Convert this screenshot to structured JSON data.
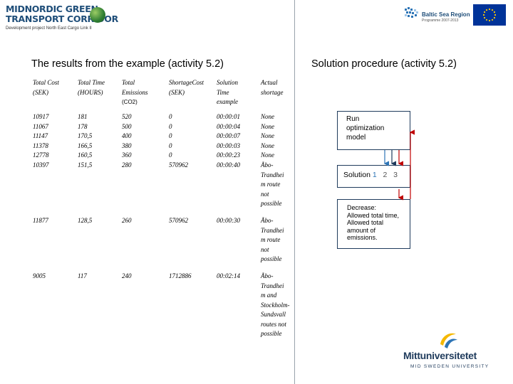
{
  "header": {
    "logo_line1": "MIDNORDIC GREEN",
    "logo_line2": "TRANSPORT CORRIDOR",
    "logo_sub": "Development project North East Cargo Link II",
    "baltic_title": "Baltic Sea Region",
    "baltic_sub": "Programme 2007-2013"
  },
  "titles": {
    "left": "The results from the example (activity 5.2)",
    "right": "Solution procedure (activity 5.2)"
  },
  "table": {
    "headers": [
      {
        "a": "Total Cost",
        "b": "(SEK)"
      },
      {
        "a": "Total Time",
        "b": "(HOURS)"
      },
      {
        "a": "Total",
        "b": "Emissions",
        "c": "(CO2)"
      },
      {
        "a": "ShortageCost",
        "b": "(SEK)"
      },
      {
        "a": "Solution",
        "b": "Time",
        "c": "example"
      },
      {
        "a": "Actual",
        "b": "shortage"
      }
    ],
    "block1": [
      [
        "10917",
        "181",
        "520",
        "0",
        "00:00:01",
        "None"
      ],
      [
        "11067",
        "178",
        "500",
        "0",
        "00:00:04",
        "None"
      ],
      [
        "11147",
        "170,5",
        "400",
        "0",
        "00:00:07",
        "None"
      ],
      [
        "11378",
        "166,5",
        "380",
        "0",
        "00:00:03",
        "None"
      ],
      [
        "12778",
        "160,5",
        "360",
        "0",
        "00:00:23",
        "None"
      ],
      [
        "10397",
        "151,5",
        "280",
        "570962",
        "00:00:40",
        "Åbo-"
      ]
    ],
    "block1_cont": [
      "Trandhei",
      "m route",
      "not",
      "possible"
    ],
    "row2": [
      "11877",
      "128,5",
      "260",
      "570962",
      "00:00:30",
      "Åbo-"
    ],
    "row2_cont": [
      "Trandhei",
      "m route",
      "not",
      "possible"
    ],
    "row3": [
      "9005",
      "117",
      "240",
      "1712886",
      "00:02:14",
      "Åbo-"
    ],
    "row3_cont": [
      "Trandhei",
      "m and",
      "Stockholm-",
      "Sundsvall",
      "routes not",
      "possible"
    ]
  },
  "diagram": {
    "run": [
      "Run",
      "optimization",
      "model"
    ],
    "solution_label": "Solution",
    "solution_nums": [
      "1",
      "2",
      "3"
    ],
    "decrease": [
      "Decrease:",
      "Allowed total time,",
      "Allowed total",
      "amount of",
      "emissions."
    ]
  },
  "footer": {
    "university": "Mittuniversitetet",
    "university_en": "MID SWEDEN UNIVERSITY"
  },
  "colors": {
    "navy": "#1f3b5c",
    "blue": "#2e75b6",
    "red": "#c00000",
    "eu_blue": "#003399",
    "eu_yellow": "#ffcc00"
  }
}
